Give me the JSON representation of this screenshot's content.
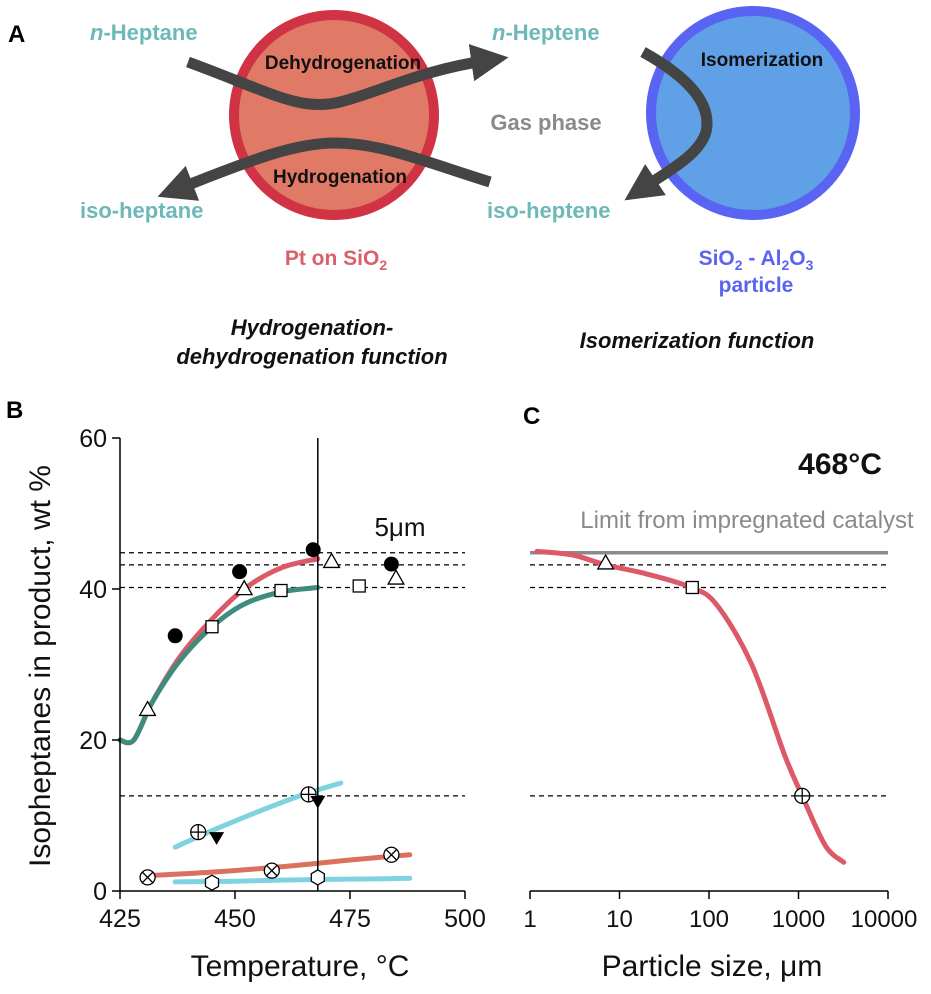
{
  "colors": {
    "teal_text": "#6db8b8",
    "pt_fill": "#e07a66",
    "pt_edge": "#cf3344",
    "pt_text": "#d9606a",
    "iso_fill": "#5fa0e6",
    "iso_edge": "#5a64f2",
    "iso_text": "#5a64f2",
    "arrow": "#444444",
    "gray_text": "#8a8a8a",
    "red_curve": "#dc5a68",
    "green_curve": "#3f8c7e",
    "cyan_curve": "#7fd3e0",
    "salmon_curve": "#dc705e",
    "limit_line": "#8a8a8a"
  },
  "panel_a": {
    "label": "A",
    "n_heptane": "n-Heptane",
    "n_heptane_italic": "n",
    "n_heptane_rest": "-Heptane",
    "n_heptene_italic": "n",
    "n_heptene_rest": "-Heptene",
    "iso_heptane": "iso-heptane",
    "iso_heptene": "iso-heptene",
    "dehydrogenation": "Dehydrogenation",
    "hydrogenation": "Hydrogenation",
    "isomerization": "Isomerization",
    "gas_phase": "Gas phase",
    "pt_label_main": "Pt on SiO",
    "pt_label_sub": "2",
    "iso_label_1a": "SiO",
    "iso_label_1b": "2",
    "iso_label_1c": " - Al",
    "iso_label_1d": "2",
    "iso_label_1e": "O",
    "iso_label_1f": "3",
    "iso_label_2": "particle",
    "function_left_1": "Hydrogenation-",
    "function_left_2": "dehydrogenation function",
    "function_right": "Isomerization function"
  },
  "panel_b": {
    "label": "B"
  },
  "panel_c": {
    "label": "C",
    "temperature": "468°C",
    "limit_label": "Limit from impregnated catalyst"
  },
  "chart_data": [
    {
      "id": "B",
      "type": "line",
      "xlabel": "Temperature, °C",
      "ylabel": "Isopheptanes in product, wt %",
      "xlim": [
        425,
        500
      ],
      "ylim": [
        0,
        60
      ],
      "xticks": [
        "425",
        "450",
        "475",
        "500"
      ],
      "yticks": [
        "0",
        "20",
        "40",
        "60"
      ],
      "annotation": "5μm",
      "vline_x": 468,
      "hlines": [
        44.8,
        43.2,
        40.2,
        12.6
      ],
      "curves": [
        {
          "color": "red_curve",
          "x": [
            425,
            428,
            432,
            438,
            445,
            452,
            460,
            468
          ],
          "y": [
            20,
            20,
            25,
            31,
            36,
            40,
            42.8,
            44
          ]
        },
        {
          "color": "green_curve",
          "x": [
            425,
            428,
            432,
            438,
            445,
            452,
            460,
            468
          ],
          "y": [
            20,
            20,
            25,
            30.5,
            35,
            38,
            39.6,
            40.2
          ]
        },
        {
          "color": "cyan_curve",
          "x": [
            437,
            445,
            455,
            465,
            473
          ],
          "y": [
            5.8,
            8,
            10.5,
            12.8,
            14.3
          ]
        },
        {
          "color": "salmon_curve",
          "x": [
            430,
            445,
            460,
            475,
            488
          ],
          "y": [
            2,
            2.5,
            3.2,
            4.1,
            4.8
          ]
        },
        {
          "color": "cyan_curve",
          "x": [
            437,
            450,
            465,
            480,
            488
          ],
          "y": [
            1.2,
            1.3,
            1.5,
            1.6,
            1.7
          ]
        }
      ],
      "points": [
        {
          "marker": "filled-circle",
          "x": 437,
          "y": 33.8
        },
        {
          "marker": "filled-circle",
          "x": 451,
          "y": 42.3
        },
        {
          "marker": "filled-circle",
          "x": 467,
          "y": 45.2
        },
        {
          "marker": "filled-circle",
          "x": 484,
          "y": 43.3
        },
        {
          "marker": "open-triangle",
          "x": 431,
          "y": 24
        },
        {
          "marker": "open-triangle",
          "x": 452,
          "y": 40
        },
        {
          "marker": "open-triangle",
          "x": 471,
          "y": 43.6
        },
        {
          "marker": "open-triangle",
          "x": 485,
          "y": 41.4
        },
        {
          "marker": "open-square",
          "x": 445,
          "y": 35
        },
        {
          "marker": "open-square",
          "x": 460,
          "y": 39.8
        },
        {
          "marker": "open-square",
          "x": 477,
          "y": 40.4
        },
        {
          "marker": "crossed-circle",
          "x": 442,
          "y": 7.8
        },
        {
          "marker": "crossed-circle",
          "x": 466,
          "y": 12.8
        },
        {
          "marker": "filled-down-triangle",
          "x": 446,
          "y": 7
        },
        {
          "marker": "filled-down-triangle",
          "x": 468,
          "y": 11.8
        },
        {
          "marker": "x-circle",
          "x": 431,
          "y": 1.8
        },
        {
          "marker": "x-circle",
          "x": 458,
          "y": 2.7
        },
        {
          "marker": "x-circle",
          "x": 484,
          "y": 4.8
        },
        {
          "marker": "open-hexagon",
          "x": 445,
          "y": 1.1
        },
        {
          "marker": "open-hexagon",
          "x": 468,
          "y": 1.8
        }
      ]
    },
    {
      "id": "C",
      "type": "line",
      "xlabel": "Particle size, μm",
      "ylabel": "",
      "xscale": "log",
      "xlim": [
        1,
        10000
      ],
      "ylim": [
        0,
        60
      ],
      "xticks": [
        "1",
        "10",
        "100",
        "1000",
        "10000"
      ],
      "limit_y": 44.8,
      "hlines": [
        43.2,
        40.2,
        12.6
      ],
      "curve": {
        "color": "red_curve",
        "x": [
          1.2,
          3,
          7,
          20,
          60,
          120,
          300,
          700,
          1100,
          2000,
          3200
        ],
        "y": [
          45,
          44.5,
          43.2,
          42,
          40.3,
          38,
          30,
          18,
          12.6,
          6,
          3.8
        ]
      },
      "points": [
        {
          "marker": "open-triangle",
          "x": 7,
          "y": 43.4
        },
        {
          "marker": "open-square",
          "x": 65,
          "y": 40.2
        },
        {
          "marker": "crossed-circle",
          "x": 1100,
          "y": 12.6
        }
      ]
    }
  ]
}
